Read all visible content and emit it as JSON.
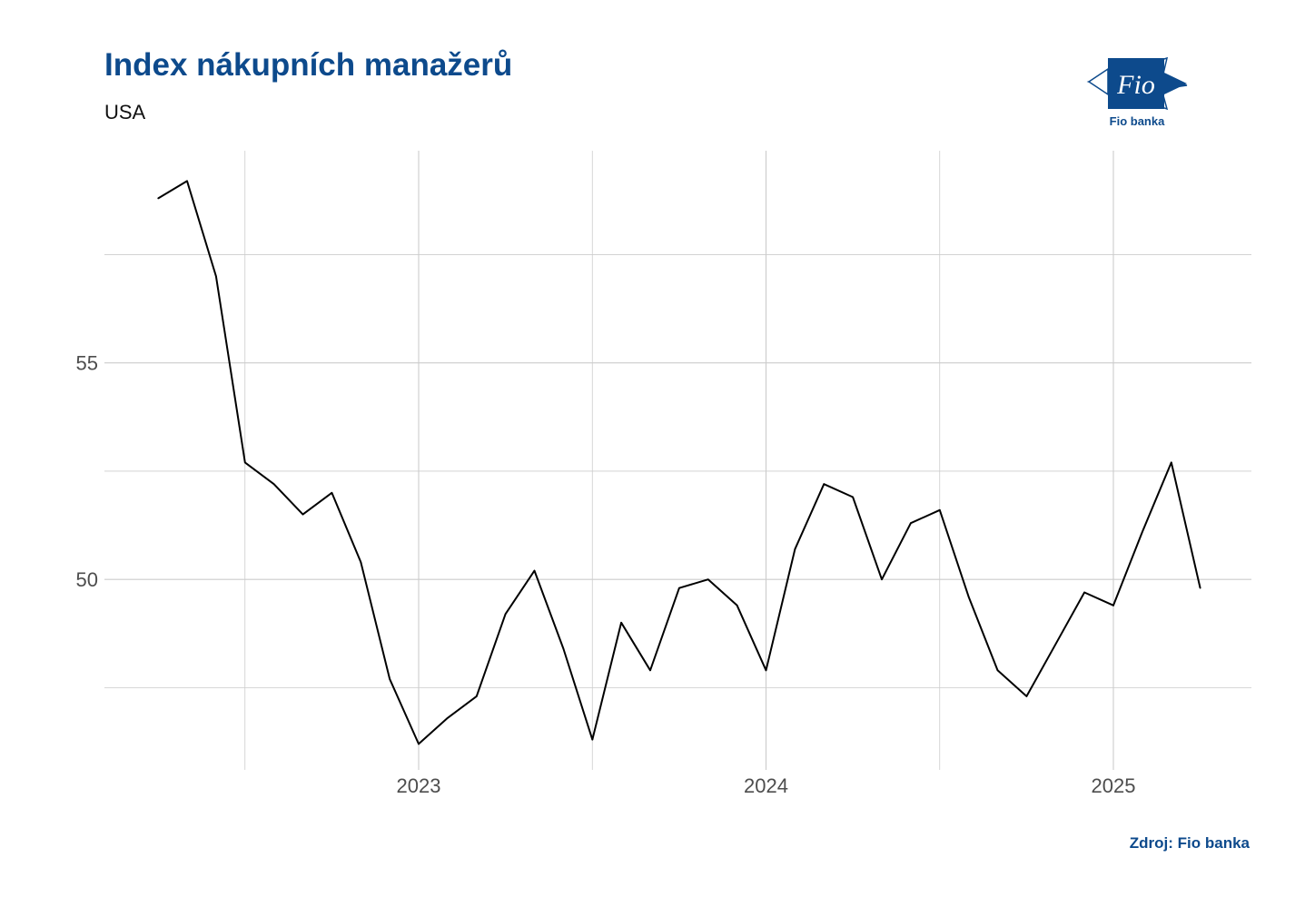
{
  "title": "Index nákupních manažerů",
  "subtitle": "USA",
  "caption": "Zdroj: Fio banka",
  "logo": {
    "mark": "Fio",
    "label": "Fio banka",
    "icon": "fio-banka-logo"
  },
  "colors": {
    "brand": "#0d4a8c",
    "line": "#000000",
    "grid": "#cccccc"
  },
  "chart_data": {
    "type": "line",
    "title": "Index nákupních manažerů",
    "subtitle": "USA",
    "xlabel": "",
    "ylabel": "",
    "x_ticks": [
      "2023",
      "2024",
      "2025"
    ],
    "y_ticks": [
      50,
      55
    ],
    "ylim": [
      45.6,
      59.9
    ],
    "grid": true,
    "legend": "none",
    "series": [
      {
        "x": [
          "2022-04",
          "2022-05",
          "2022-06",
          "2022-07",
          "2022-08",
          "2022-09",
          "2022-10",
          "2022-11",
          "2022-12",
          "2023-01",
          "2023-02",
          "2023-03",
          "2023-04",
          "2023-05",
          "2023-06",
          "2023-07",
          "2023-08",
          "2023-09",
          "2023-10",
          "2023-11",
          "2023-12",
          "2024-01",
          "2024-02",
          "2024-03",
          "2024-04",
          "2024-05",
          "2024-06",
          "2024-07",
          "2024-08",
          "2024-09",
          "2024-10",
          "2024-11",
          "2024-12",
          "2025-01",
          "2025-02",
          "2025-03",
          "2025-04"
        ],
        "values": [
          58.8,
          59.2,
          57.0,
          52.7,
          52.2,
          51.5,
          52.0,
          50.4,
          47.7,
          46.2,
          46.8,
          47.3,
          49.2,
          50.2,
          48.4,
          46.3,
          49.0,
          47.9,
          49.8,
          50.0,
          49.4,
          47.9,
          50.7,
          52.2,
          51.9,
          50.0,
          51.3,
          51.6,
          49.6,
          47.9,
          47.3,
          48.5,
          49.7,
          49.4,
          51.1,
          52.7,
          49.8
        ]
      }
    ]
  }
}
